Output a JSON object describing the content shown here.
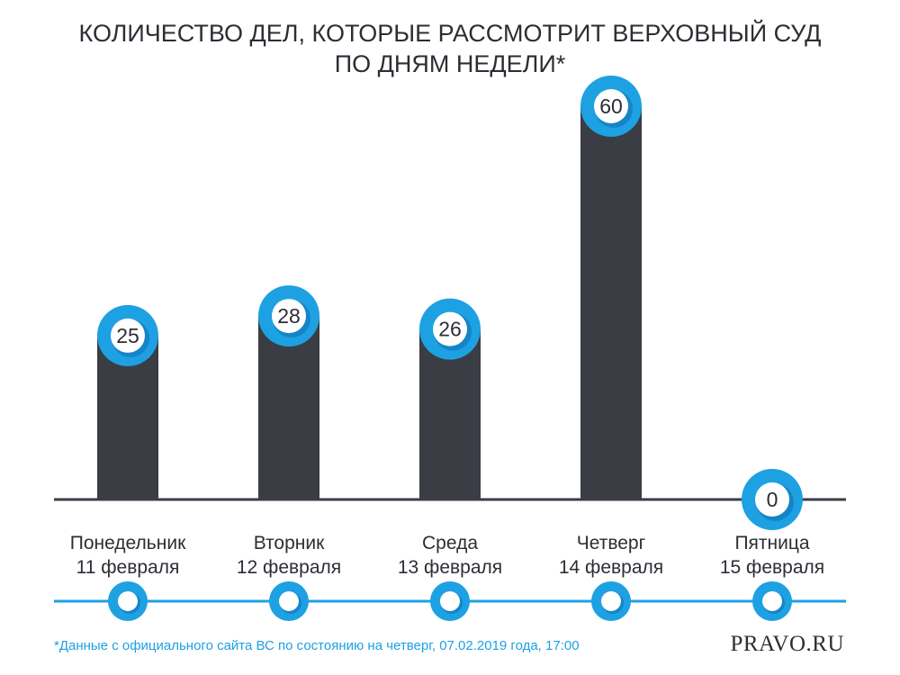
{
  "chart_data": {
    "type": "bar",
    "title": [
      "КОЛИЧЕСТВО ДЕЛ, КОТОРЫЕ РАССМОТРИТ ВЕРХОВНЫЙ СУД",
      "ПО ДНЯМ НЕДЕЛИ*"
    ],
    "categories": [
      {
        "day": "Понедельник",
        "date": "11 февраля"
      },
      {
        "day": "Вторник",
        "date": "12 февраля"
      },
      {
        "day": "Среда",
        "date": "13 февраля"
      },
      {
        "day": "Четверг",
        "date": "14 февраля"
      },
      {
        "day": "Пятница",
        "date": "15 февраля"
      }
    ],
    "values": [
      25,
      28,
      26,
      60,
      0
    ],
    "value_labels": [
      "25",
      "28",
      "26",
      "60",
      "0"
    ],
    "ylim": [
      0,
      60
    ],
    "grid": false,
    "legend": "none",
    "footnote": "*Данные с официального сайта ВС по состоянию на четверг, 07.02.2019 года, 17:00",
    "brand": "PRAVO.RU"
  },
  "colors": {
    "bar": "#3a3d44",
    "accent": "#1da1e2",
    "accent_dark": "#1585c7",
    "text": "#2b2e34",
    "axis": "#3a3d44",
    "footnote": "#1da1e2"
  }
}
